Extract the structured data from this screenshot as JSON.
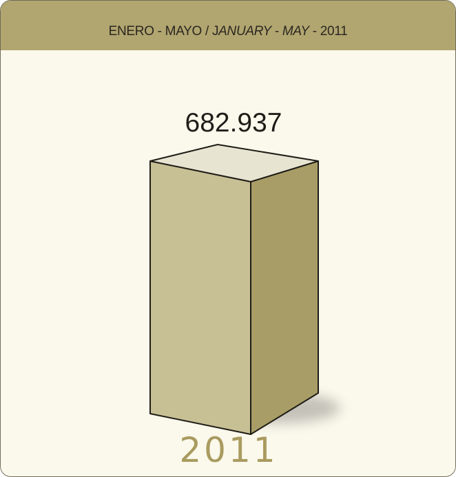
{
  "header": {
    "prefix": "ENERO - MAYO / J",
    "italic_1": "ANUARY",
    "middle": " - ",
    "italic_2": "MAY",
    "suffix": " - 2011"
  },
  "chart_data": {
    "type": "bar",
    "categories": [
      "2011"
    ],
    "values": [
      682937
    ],
    "value_labels": [
      "682.937"
    ],
    "title": "",
    "xlabel": "",
    "ylabel": ""
  },
  "colors": {
    "header_band": "#b1a570",
    "panel_background": "#fbf8ec",
    "bar_front": "#c8c095",
    "bar_side": "#a89d66",
    "bar_top": "#e7e4d2",
    "year_label": "#a99b5f"
  }
}
